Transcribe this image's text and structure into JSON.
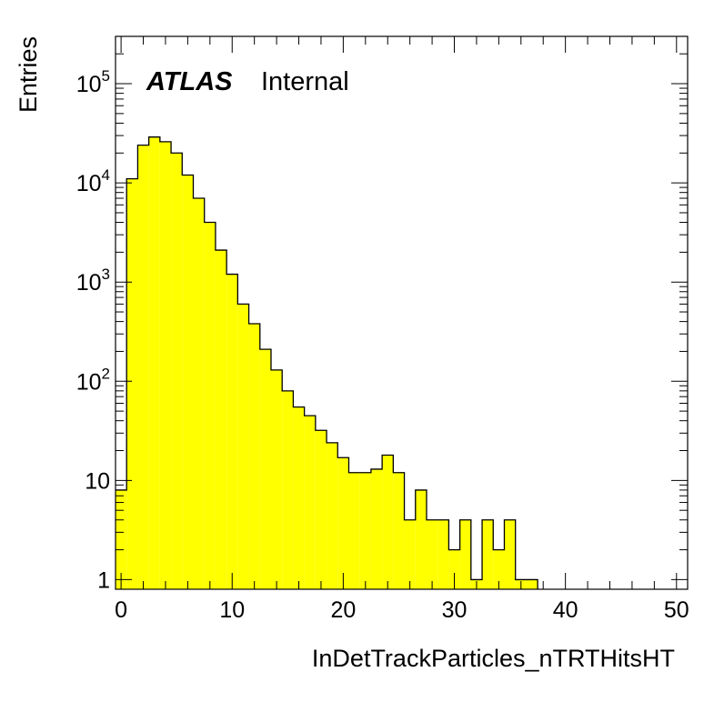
{
  "chart_data": {
    "type": "bar",
    "title": "",
    "xlabel": "InDetTrackParticles_nTRTHitsHT",
    "ylabel": "Entries",
    "xlim": [
      -0.5,
      51
    ],
    "ylim": [
      0.8,
      300000
    ],
    "yscale": "log",
    "bin_width": 1,
    "grid": false,
    "legend": "none",
    "fill_color": "#ffff00",
    "line_color": "#000000",
    "x_ticks": [
      0,
      10,
      20,
      30,
      40,
      50
    ],
    "y_ticks": [
      {
        "value": 1,
        "mantissa": "1",
        "exp": ""
      },
      {
        "value": 10,
        "mantissa": "10",
        "exp": ""
      },
      {
        "value": 100,
        "mantissa": "10",
        "exp": "2"
      },
      {
        "value": 1000,
        "mantissa": "10",
        "exp": "3"
      },
      {
        "value": 10000,
        "mantissa": "10",
        "exp": "4"
      },
      {
        "value": 100000,
        "mantissa": "10",
        "exp": "5"
      }
    ],
    "bin_low_edges": [
      -0.5,
      0.5,
      1.5,
      2.5,
      3.5,
      4.5,
      5.5,
      6.5,
      7.5,
      8.5,
      9.5,
      10.5,
      11.5,
      12.5,
      13.5,
      14.5,
      15.5,
      16.5,
      17.5,
      18.5,
      19.5,
      20.5,
      21.5,
      22.5,
      23.5,
      24.5,
      25.5,
      26.5,
      27.5,
      28.5,
      29.5,
      30.5,
      31.5,
      32.5,
      33.5,
      34.5,
      35.5,
      36.5
    ],
    "values": [
      8,
      11000,
      24000,
      29000,
      26000,
      20000,
      12000,
      7000,
      4000,
      2100,
      1200,
      600,
      380,
      210,
      130,
      80,
      55,
      45,
      32,
      24,
      17,
      12,
      12,
      13,
      18,
      12,
      4,
      8,
      4,
      4,
      2,
      4,
      1,
      4,
      2,
      4,
      1,
      1
    ]
  },
  "labels": {
    "atlas": "ATLAS",
    "internal": "Internal"
  }
}
